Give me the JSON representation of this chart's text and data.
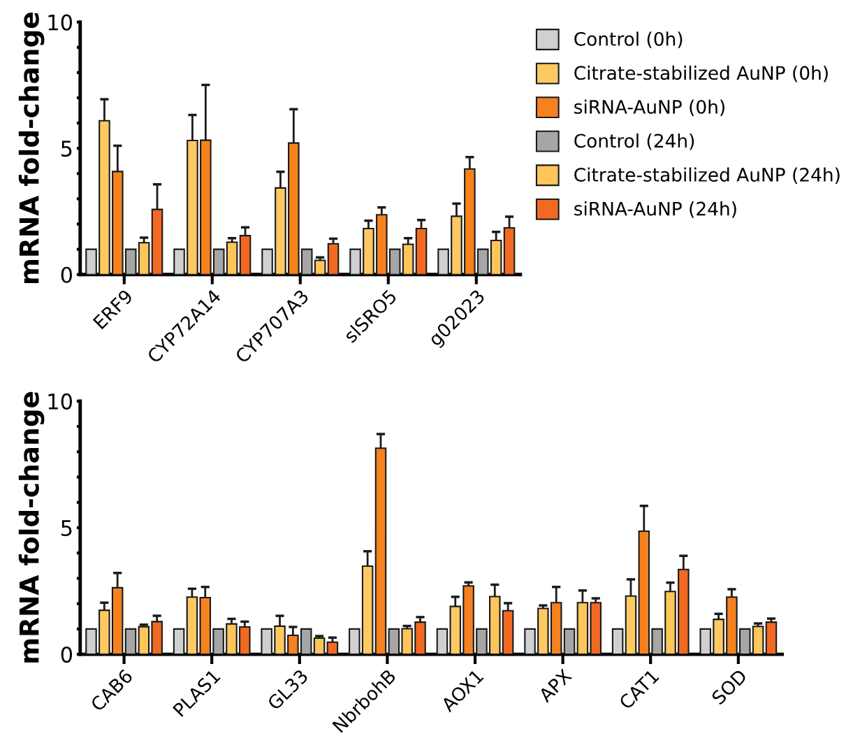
{
  "chart_data": [
    {
      "type": "bar",
      "ylabel": "mRNA fold-change",
      "categories": [
        "ERF9",
        "CYP72A14",
        "CYP707A3",
        "slSRO5",
        "g02023"
      ],
      "ylim": [
        0,
        10
      ],
      "yticks": [
        0,
        {
          "value": 1,
          "label": null
        },
        {
          "value": 2,
          "label": null
        },
        {
          "value": 3,
          "label": null
        },
        {
          "value": 4,
          "label": null
        },
        5,
        {
          "value": 6,
          "label": null
        },
        {
          "value": 7,
          "label": null
        },
        {
          "value": 8,
          "label": null
        },
        {
          "value": 9,
          "label": null
        },
        10
      ],
      "grid": false,
      "legend": "right",
      "series": [
        {
          "name": "Control (0h)",
          "color": "#d0d0d0",
          "values": [
            1,
            1,
            1,
            1,
            1
          ]
        },
        {
          "name": "Citrate-stabilized AuNP (0h)",
          "color": "#fec963",
          "values": [
            6.09,
            5.31,
            3.43,
            1.82,
            2.31
          ],
          "errors": [
            [
              6.09,
              6.94
            ],
            [
              5.31,
              6.32
            ],
            [
              3.43,
              4.07
            ],
            [
              1.82,
              2.13
            ],
            [
              2.31,
              2.81
            ]
          ]
        },
        {
          "name": "siRNA-AuNP (0h)",
          "color": "#f5821f",
          "values": [
            4.08,
            5.32,
            5.21,
            2.37,
            4.18
          ],
          "errors": [
            [
              4.08,
              5.1
            ],
            [
              5.32,
              7.51
            ],
            [
              5.21,
              6.55
            ],
            [
              2.37,
              2.66
            ],
            [
              4.18,
              4.65
            ]
          ]
        },
        {
          "name": "Control (24h)",
          "color": "#a6a6a6",
          "values": [
            1,
            1,
            1,
            1,
            1
          ]
        },
        {
          "name": "Citrate-stabilized AuNP (24h)",
          "color": "#fdc55a",
          "values": [
            1.26,
            1.28,
            0.56,
            1.2,
            1.35
          ],
          "errors": [
            [
              1.26,
              1.46
            ],
            [
              1.28,
              1.44
            ],
            [
              0.56,
              0.68
            ],
            [
              1.2,
              1.44
            ],
            [
              1.35,
              1.69
            ]
          ]
        },
        {
          "name": "siRNA-AuNP (24h)",
          "color": "#f26a22",
          "values": [
            2.58,
            1.54,
            1.22,
            1.82,
            1.85
          ],
          "errors": [
            [
              2.58,
              3.57
            ],
            [
              1.54,
              1.87
            ],
            [
              1.22,
              1.42
            ],
            [
              1.82,
              2.16
            ],
            [
              1.85,
              2.29
            ]
          ]
        }
      ]
    },
    {
      "type": "bar",
      "ylabel": "mRNA fold-change",
      "categories": [
        "CAB6",
        "PLAS1",
        "GL33",
        "NbrbohB",
        "AOX1",
        "APX",
        "CAT1",
        "SOD"
      ],
      "ylim": [
        0,
        10
      ],
      "yticks": [
        0,
        {
          "value": 1,
          "label": null
        },
        {
          "value": 2,
          "label": null
        },
        {
          "value": 3,
          "label": null
        },
        {
          "value": 4,
          "label": null
        },
        5,
        {
          "value": 6,
          "label": null
        },
        {
          "value": 7,
          "label": null
        },
        {
          "value": 8,
          "label": null
        },
        {
          "value": 9,
          "label": null
        },
        10
      ],
      "grid": false,
      "series": [
        {
          "color": "#d0d0d0",
          "values": [
            1,
            1,
            1,
            1,
            1,
            1,
            1,
            1
          ]
        },
        {
          "color": "#fec963",
          "values": [
            1.74,
            2.26,
            1.11,
            3.48,
            1.89,
            1.81,
            2.3,
            1.38
          ],
          "errors": [
            [
              1.74,
              2.04
            ],
            [
              2.26,
              2.59
            ],
            [
              1.11,
              1.52
            ],
            [
              3.48,
              4.07
            ],
            [
              1.89,
              2.27
            ],
            [
              1.81,
              1.93
            ],
            [
              2.3,
              2.96
            ],
            [
              1.38,
              1.6
            ]
          ]
        },
        {
          "color": "#f5821f",
          "values": [
            2.63,
            2.24,
            0.75,
            8.14,
            2.7,
            2.04,
            4.86,
            2.26
          ],
          "errors": [
            [
              2.63,
              3.21
            ],
            [
              2.24,
              2.66
            ],
            [
              0.75,
              1.08
            ],
            [
              8.14,
              8.7
            ],
            [
              2.7,
              2.84
            ],
            [
              2.04,
              2.66
            ],
            [
              4.86,
              5.86
            ],
            [
              2.26,
              2.57
            ]
          ]
        },
        {
          "color": "#a6a6a6",
          "values": [
            1,
            1,
            1,
            1,
            1,
            1,
            1,
            1
          ]
        },
        {
          "color": "#fdc55a",
          "values": [
            1.09,
            1.2,
            0.64,
            1.01,
            2.28,
            2.04,
            2.48,
            1.1
          ],
          "errors": [
            [
              1.09,
              1.17
            ],
            [
              1.2,
              1.4
            ],
            [
              0.64,
              0.72
            ],
            [
              1.01,
              1.12
            ],
            [
              2.28,
              2.75
            ],
            [
              2.04,
              2.52
            ],
            [
              2.48,
              2.83
            ],
            [
              1.1,
              1.22
            ]
          ]
        },
        {
          "color": "#f26a22",
          "values": [
            1.29,
            1.08,
            0.48,
            1.27,
            1.72,
            2.04,
            3.35,
            1.27
          ],
          "errors": [
            [
              1.29,
              1.52
            ],
            [
              1.08,
              1.29
            ],
            [
              0.48,
              0.66
            ],
            [
              1.27,
              1.47
            ],
            [
              1.72,
              2.02
            ],
            [
              2.04,
              2.21
            ],
            [
              3.35,
              3.89
            ],
            [
              1.27,
              1.41
            ]
          ]
        }
      ]
    }
  ]
}
